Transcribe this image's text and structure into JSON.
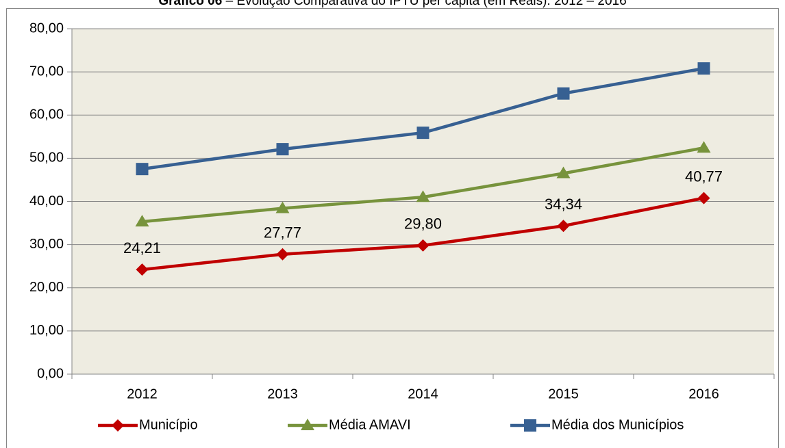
{
  "chart_data": {
    "type": "line",
    "title_number": "Gráfico 06",
    "title": "– Evolução Comparativa do IPTU per capita (em Reais): 2012 – 2016",
    "categories": [
      "2012",
      "2013",
      "2014",
      "2015",
      "2016"
    ],
    "series": [
      {
        "name": "Município",
        "color": "#c00000",
        "marker": "diamond",
        "values": [
          24.21,
          27.77,
          29.8,
          34.34,
          40.77
        ],
        "value_labels": [
          "24,21",
          "27,77",
          "29,80",
          "34,34",
          "40,77"
        ]
      },
      {
        "name": "Média AMAVI",
        "color": "#77933c",
        "marker": "triangle",
        "values": [
          35.3,
          38.4,
          41.0,
          46.5,
          52.4
        ]
      },
      {
        "name": "Média dos Municípios",
        "color": "#376092",
        "marker": "square",
        "values": [
          47.5,
          52.1,
          55.9,
          65.0,
          70.8
        ]
      }
    ],
    "ylim": [
      0,
      80
    ],
    "yticks": [
      {
        "value": 0,
        "label": "0,00"
      },
      {
        "value": 10,
        "label": "10,00"
      },
      {
        "value": 20,
        "label": "20,00"
      },
      {
        "value": 30,
        "label": "30,00"
      },
      {
        "value": 40,
        "label": "40,00"
      },
      {
        "value": 50,
        "label": "50,00"
      },
      {
        "value": 60,
        "label": "60,00"
      },
      {
        "value": 70,
        "label": "70,00"
      },
      {
        "value": 80,
        "label": "80,00"
      }
    ],
    "grid": true,
    "legend": "bottom",
    "background": "#eeece1"
  }
}
